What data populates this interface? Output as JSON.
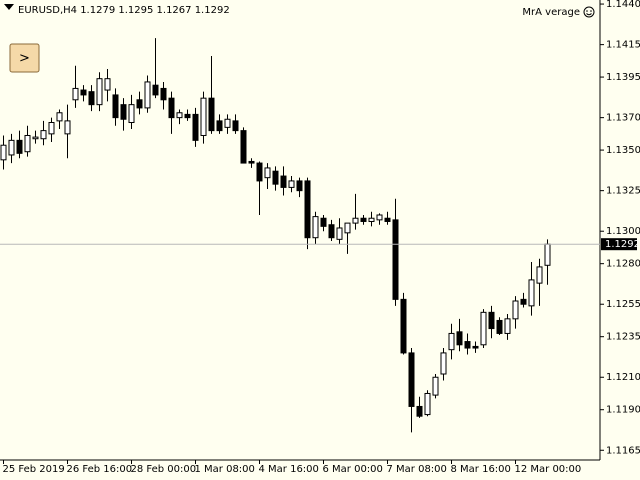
{
  "chart_data": {
    "type": "candlestick",
    "title": "EURUSD,H4  1.1279 1.1295 1.1267 1.1292",
    "indicator": "MrA verage",
    "button": ">",
    "categories": [
      "25 Feb 2019",
      null,
      null,
      null,
      null,
      null,
      null,
      null,
      "26 Feb 16:00",
      null,
      null,
      null,
      null,
      null,
      null,
      null,
      "28 Feb 00:00",
      null,
      null,
      null,
      null,
      null,
      null,
      null,
      "1 Mar 08:00",
      null,
      null,
      null,
      null,
      null,
      null,
      null,
      "4 Mar 16:00",
      null,
      null,
      null,
      null,
      null,
      null,
      null,
      "6 Mar 00:00",
      null,
      null,
      null,
      null,
      null,
      null,
      null,
      "7 Mar 08:00",
      null,
      null,
      null,
      null,
      null,
      null,
      null,
      "8 Mar 16:00",
      null,
      null,
      null,
      null,
      null,
      null,
      null,
      "12 Mar 00:00",
      null,
      null,
      null,
      null
    ],
    "open": [
      1.1344,
      1.1347,
      1.1356,
      1.1349,
      1.1357,
      1.1357,
      1.136,
      1.1368,
      1.136,
      1.1381,
      1.1387,
      1.1386,
      1.1378,
      1.1387,
      1.1384,
      1.1378,
      1.1367,
      1.1381,
      1.1376,
      1.139,
      1.1388,
      1.1382,
      1.137,
      1.1372,
      1.1372,
      1.1359,
      1.1382,
      1.1368,
      1.1364,
      1.1368,
      1.1362,
      1.1343,
      1.1342,
      1.1333,
      1.1337,
      1.1334,
      1.1327,
      1.1331,
      1.1331,
      1.1296,
      1.1308,
      1.1304,
      1.1295,
      1.1299,
      1.1305,
      1.1308,
      1.1306,
      1.1307,
      1.1308,
      1.1307,
      1.1258,
      1.1225,
      1.1192,
      1.1187,
      1.1199,
      1.1212,
      1.1227,
      1.1238,
      1.1232,
      1.1229,
      1.123,
      1.125,
      1.1245,
      1.1237,
      1.1246,
      1.1258,
      1.1254,
      1.1268,
      1.1279
    ],
    "high": [
      1.1359,
      1.136,
      1.1362,
      1.1365,
      1.1362,
      1.1368,
      1.137,
      1.1375,
      1.1378,
      1.1402,
      1.139,
      1.139,
      1.1398,
      1.14,
      1.1388,
      1.1382,
      1.1384,
      1.1386,
      1.1396,
      1.1419,
      1.1392,
      1.1386,
      1.1375,
      1.1375,
      1.1376,
      1.1386,
      1.1408,
      1.1372,
      1.1372,
      1.1372,
      1.1364,
      1.1345,
      1.1343,
      1.1342,
      1.134,
      1.134,
      1.1334,
      1.1333,
      1.1333,
      1.1312,
      1.131,
      1.1307,
      1.1308,
      1.1305,
      1.1323,
      1.131,
      1.1312,
      1.1311,
      1.1312,
      1.132,
      1.1262,
      1.1228,
      1.1198,
      1.1202,
      1.1212,
      1.1228,
      1.1243,
      1.1246,
      1.1237,
      1.1232,
      1.1252,
      1.1254,
      1.1247,
      1.1249,
      1.126,
      1.1262,
      1.1281,
      1.1283,
      1.1295
    ],
    "low": [
      1.1338,
      1.1342,
      1.1345,
      1.1346,
      1.1354,
      1.1353,
      1.1355,
      1.1363,
      1.1345,
      1.1376,
      1.138,
      1.1374,
      1.1374,
      1.138,
      1.1365,
      1.1362,
      1.1363,
      1.1372,
      1.1373,
      1.1382,
      1.1375,
      1.136,
      1.1366,
      1.1368,
      1.1352,
      1.1354,
      1.136,
      1.136,
      1.136,
      1.136,
      1.1342,
      1.1339,
      1.131,
      1.1326,
      1.1325,
      1.1322,
      1.1324,
      1.1321,
      1.1289,
      1.1292,
      1.13,
      1.1294,
      1.1292,
      1.1286,
      1.1301,
      1.1304,
      1.1303,
      1.1304,
      1.1304,
      1.1254,
      1.1224,
      1.1176,
      1.1185,
      1.1186,
      1.1197,
      1.1208,
      1.1221,
      1.1226,
      1.1224,
      1.1225,
      1.1228,
      1.1234,
      1.1236,
      1.1233,
      1.124,
      1.1253,
      1.1248,
      1.1254,
      1.1267
    ],
    "close": [
      1.1353,
      1.1356,
      1.1348,
      1.1359,
      1.1358,
      1.1362,
      1.1367,
      1.1373,
      1.1368,
      1.1388,
      1.1384,
      1.1378,
      1.1394,
      1.1394,
      1.137,
      1.1369,
      1.1378,
      1.1376,
      1.1392,
      1.1384,
      1.1381,
      1.137,
      1.1373,
      1.137,
      1.1356,
      1.1382,
      1.1362,
      1.1362,
      1.1369,
      1.1362,
      1.1342,
      1.1342,
      1.1331,
      1.1339,
      1.1329,
      1.1327,
      1.1331,
      1.1325,
      1.1296,
      1.1309,
      1.1303,
      1.1296,
      1.1302,
      1.1305,
      1.1308,
      1.1306,
      1.1308,
      1.131,
      1.1306,
      1.1258,
      1.1225,
      1.1192,
      1.1186,
      1.12,
      1.121,
      1.1225,
      1.1237,
      1.123,
      1.1228,
      1.1228,
      1.125,
      1.124,
      1.1237,
      1.1246,
      1.1257,
      1.1255,
      1.127,
      1.1278,
      1.1292
    ],
    "up_color": "#ffffff",
    "down_color": "#000000",
    "last_price": 1.1292,
    "ylim": [
      1.1159,
      1.14425
    ],
    "yticks": [
      {
        "value": 1.144,
        "label": "1.1440"
      },
      1.1415,
      1.1395,
      {
        "value": 1.137,
        "label": "1.1370"
      },
      {
        "value": 1.135,
        "label": "1.1350"
      },
      1.1325,
      {
        "value": 1.13,
        "label": "1.1300"
      },
      {
        "value": 1.128,
        "label": "1.1280"
      },
      1.1255,
      1.1235,
      {
        "value": 1.121,
        "label": "1.1210"
      },
      {
        "value": 1.119,
        "label": "1.1190"
      },
      1.1165
    ],
    "grid": false
  }
}
